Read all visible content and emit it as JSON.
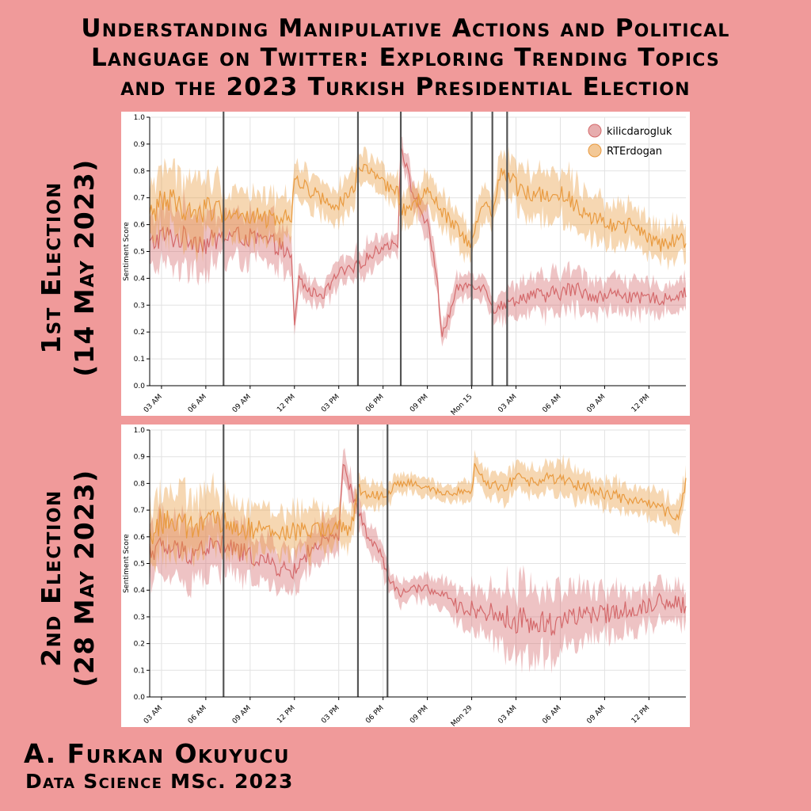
{
  "title": {
    "line1": "Understanding Manipulative Actions and Political",
    "line2": "Language on Twitter: Exploring Trending Topics",
    "line3": "and the 2023 Turkish Presidential Election"
  },
  "panels": [
    {
      "label_line1": "1st Election",
      "label_line2": "(14 May 2023)"
    },
    {
      "label_line1": "2nd Election",
      "label_line2": "(28 May 2023)"
    }
  ],
  "footer": {
    "author": "A. Furkan Okuyucu",
    "degree": "Data Science MSc. 2023"
  },
  "colors": {
    "kilicdaroglu": "#d4696b",
    "rterdogan": "#e99a3f",
    "event_line": "#555555"
  },
  "chart_data": [
    {
      "type": "line",
      "ylabel": "Sentiment Score",
      "ylim": [
        0,
        1
      ],
      "yticks": [
        "0.0",
        "0.1",
        "0.2",
        "0.3",
        "0.4",
        "0.5",
        "0.6",
        "0.7",
        "0.8",
        "0.9",
        "1.0"
      ],
      "xlim_hours": [
        2.2,
        38.5
      ],
      "xticks": [
        {
          "h": 3,
          "label": "03 AM"
        },
        {
          "h": 6,
          "label": "06 AM"
        },
        {
          "h": 9,
          "label": "09 AM"
        },
        {
          "h": 12,
          "label": "12 PM"
        },
        {
          "h": 15,
          "label": "03 PM"
        },
        {
          "h": 18,
          "label": "06 PM"
        },
        {
          "h": 21,
          "label": "09 PM"
        },
        {
          "h": 24,
          "label": "Mon 15"
        },
        {
          "h": 27,
          "label": "03 AM"
        },
        {
          "h": 30,
          "label": "06 AM"
        },
        {
          "h": 33,
          "label": "09 AM"
        },
        {
          "h": 36,
          "label": "12 PM"
        }
      ],
      "event_lines_hours": [
        7.2,
        16.3,
        19.2,
        24.0,
        25.4,
        26.4
      ],
      "grid": true,
      "legend_position": "top-right",
      "series": [
        {
          "name": "kilicdarogluk",
          "color_key": "kilicdaroglu",
          "x": [
            2.2,
            3,
            4,
            5,
            6,
            7,
            8,
            9,
            10,
            11,
            11.8,
            12,
            12.3,
            13,
            14,
            15,
            16,
            16.3,
            17,
            18,
            19,
            19.2,
            20,
            21,
            21.6,
            22,
            23,
            24,
            25,
            25.5,
            26,
            27,
            28,
            29,
            30,
            31,
            32,
            33,
            34,
            35,
            36,
            37,
            38,
            38.5
          ],
          "y": [
            0.52,
            0.56,
            0.55,
            0.55,
            0.53,
            0.55,
            0.56,
            0.55,
            0.54,
            0.52,
            0.47,
            0.22,
            0.4,
            0.35,
            0.34,
            0.42,
            0.43,
            0.45,
            0.48,
            0.52,
            0.53,
            0.9,
            0.72,
            0.6,
            0.43,
            0.18,
            0.36,
            0.38,
            0.36,
            0.28,
            0.3,
            0.32,
            0.34,
            0.33,
            0.35,
            0.36,
            0.34,
            0.33,
            0.35,
            0.32,
            0.33,
            0.32,
            0.34,
            0.35
          ],
          "ci": [
            0.1,
            0.1,
            0.1,
            0.1,
            0.1,
            0.09,
            0.08,
            0.08,
            0.08,
            0.08,
            0.06,
            0.04,
            0.05,
            0.04,
            0.04,
            0.05,
            0.05,
            0.05,
            0.05,
            0.04,
            0.04,
            0.04,
            0.05,
            0.05,
            0.05,
            0.04,
            0.04,
            0.04,
            0.04,
            0.04,
            0.05,
            0.05,
            0.06,
            0.07,
            0.07,
            0.07,
            0.06,
            0.06,
            0.06,
            0.06,
            0.05,
            0.05,
            0.05,
            0.05
          ]
        },
        {
          "name": "RTErdogan",
          "color_key": "rterdogan",
          "x": [
            2.2,
            3,
            4,
            5,
            6,
            7,
            8,
            9,
            10,
            11,
            11.8,
            12,
            13,
            14,
            15,
            16,
            16.3,
            17,
            18,
            19,
            19.2,
            20,
            21,
            22,
            23,
            24,
            24.4,
            25,
            25.4,
            26,
            27,
            28,
            29,
            30,
            31,
            32,
            33,
            34,
            35,
            36,
            37,
            38,
            38.5
          ],
          "y": [
            0.62,
            0.7,
            0.68,
            0.64,
            0.66,
            0.65,
            0.64,
            0.63,
            0.62,
            0.63,
            0.63,
            0.78,
            0.73,
            0.69,
            0.68,
            0.72,
            0.82,
            0.8,
            0.75,
            0.72,
            0.65,
            0.67,
            0.72,
            0.65,
            0.58,
            0.52,
            0.62,
            0.68,
            0.62,
            0.82,
            0.74,
            0.72,
            0.7,
            0.73,
            0.68,
            0.64,
            0.62,
            0.58,
            0.6,
            0.55,
            0.52,
            0.55,
            0.53
          ],
          "ci": [
            0.1,
            0.12,
            0.11,
            0.11,
            0.11,
            0.1,
            0.09,
            0.09,
            0.08,
            0.08,
            0.06,
            0.06,
            0.06,
            0.06,
            0.06,
            0.06,
            0.05,
            0.05,
            0.05,
            0.05,
            0.06,
            0.06,
            0.06,
            0.06,
            0.06,
            0.06,
            0.06,
            0.06,
            0.06,
            0.07,
            0.08,
            0.08,
            0.08,
            0.08,
            0.08,
            0.08,
            0.07,
            0.07,
            0.07,
            0.06,
            0.06,
            0.06,
            0.06
          ]
        }
      ]
    },
    {
      "type": "line",
      "ylabel": "Sentiment Score",
      "ylim": [
        0,
        1
      ],
      "yticks": [
        "0.0",
        "0.1",
        "0.2",
        "0.3",
        "0.4",
        "0.5",
        "0.6",
        "0.7",
        "0.8",
        "0.9",
        "1.0"
      ],
      "xlim_hours": [
        2.2,
        38.5
      ],
      "xticks": [
        {
          "h": 3,
          "label": "03 AM"
        },
        {
          "h": 6,
          "label": "06 AM"
        },
        {
          "h": 9,
          "label": "09 AM"
        },
        {
          "h": 12,
          "label": "12 PM"
        },
        {
          "h": 15,
          "label": "03 PM"
        },
        {
          "h": 18,
          "label": "06 PM"
        },
        {
          "h": 21,
          "label": "09 PM"
        },
        {
          "h": 24,
          "label": "Mon 29"
        },
        {
          "h": 27,
          "label": "03 AM"
        },
        {
          "h": 30,
          "label": "06 AM"
        },
        {
          "h": 33,
          "label": "09 AM"
        },
        {
          "h": 36,
          "label": "12 PM"
        }
      ],
      "event_lines_hours": [
        7.2,
        16.3,
        18.3
      ],
      "grid": true,
      "legend_position": "none",
      "series": [
        {
          "name": "kilicdarogluk",
          "color_key": "kilicdaroglu",
          "x": [
            2.2,
            3,
            4,
            5,
            6,
            7,
            8,
            9,
            10,
            11,
            12,
            13,
            14,
            15,
            15.3,
            16,
            17,
            18,
            18.3,
            19,
            20,
            21,
            22,
            23,
            24,
            25,
            26,
            27,
            28,
            29,
            30,
            31,
            32,
            33,
            34,
            35,
            36,
            37,
            38,
            38.5
          ],
          "y": [
            0.55,
            0.56,
            0.55,
            0.54,
            0.56,
            0.57,
            0.55,
            0.53,
            0.51,
            0.48,
            0.47,
            0.55,
            0.58,
            0.6,
            0.87,
            0.74,
            0.6,
            0.52,
            0.45,
            0.39,
            0.4,
            0.41,
            0.38,
            0.34,
            0.33,
            0.32,
            0.3,
            0.29,
            0.28,
            0.27,
            0.29,
            0.31,
            0.3,
            0.31,
            0.33,
            0.32,
            0.35,
            0.36,
            0.35,
            0.34
          ],
          "ci": [
            0.1,
            0.1,
            0.1,
            0.1,
            0.1,
            0.09,
            0.09,
            0.08,
            0.08,
            0.07,
            0.07,
            0.07,
            0.07,
            0.06,
            0.05,
            0.05,
            0.05,
            0.05,
            0.04,
            0.04,
            0.04,
            0.04,
            0.05,
            0.06,
            0.07,
            0.08,
            0.1,
            0.12,
            0.13,
            0.12,
            0.11,
            0.1,
            0.09,
            0.08,
            0.08,
            0.07,
            0.07,
            0.07,
            0.07,
            0.07
          ]
        },
        {
          "name": "RTErdogan",
          "color_key": "rterdogan",
          "x": [
            2.2,
            3,
            4,
            5,
            6,
            7,
            8,
            9,
            10,
            11,
            12,
            13,
            14,
            15,
            15.5,
            16,
            16.3,
            17,
            18,
            19,
            20,
            21,
            22,
            23,
            24,
            24.2,
            25,
            26,
            27,
            28,
            29,
            30,
            31,
            32,
            33,
            34,
            35,
            36,
            37,
            38,
            38.5
          ],
          "y": [
            0.6,
            0.66,
            0.65,
            0.63,
            0.66,
            0.65,
            0.64,
            0.63,
            0.62,
            0.61,
            0.62,
            0.62,
            0.63,
            0.64,
            0.62,
            0.66,
            0.78,
            0.76,
            0.75,
            0.8,
            0.8,
            0.78,
            0.76,
            0.77,
            0.78,
            0.86,
            0.8,
            0.78,
            0.82,
            0.8,
            0.83,
            0.82,
            0.8,
            0.78,
            0.76,
            0.75,
            0.73,
            0.72,
            0.7,
            0.68,
            0.8
          ],
          "ci": [
            0.12,
            0.12,
            0.11,
            0.11,
            0.11,
            0.1,
            0.1,
            0.09,
            0.09,
            0.08,
            0.08,
            0.08,
            0.07,
            0.07,
            0.07,
            0.05,
            0.05,
            0.04,
            0.04,
            0.03,
            0.03,
            0.03,
            0.03,
            0.03,
            0.04,
            0.04,
            0.04,
            0.05,
            0.05,
            0.05,
            0.05,
            0.06,
            0.06,
            0.05,
            0.05,
            0.05,
            0.05,
            0.05,
            0.05,
            0.05,
            0.05
          ]
        }
      ]
    }
  ]
}
